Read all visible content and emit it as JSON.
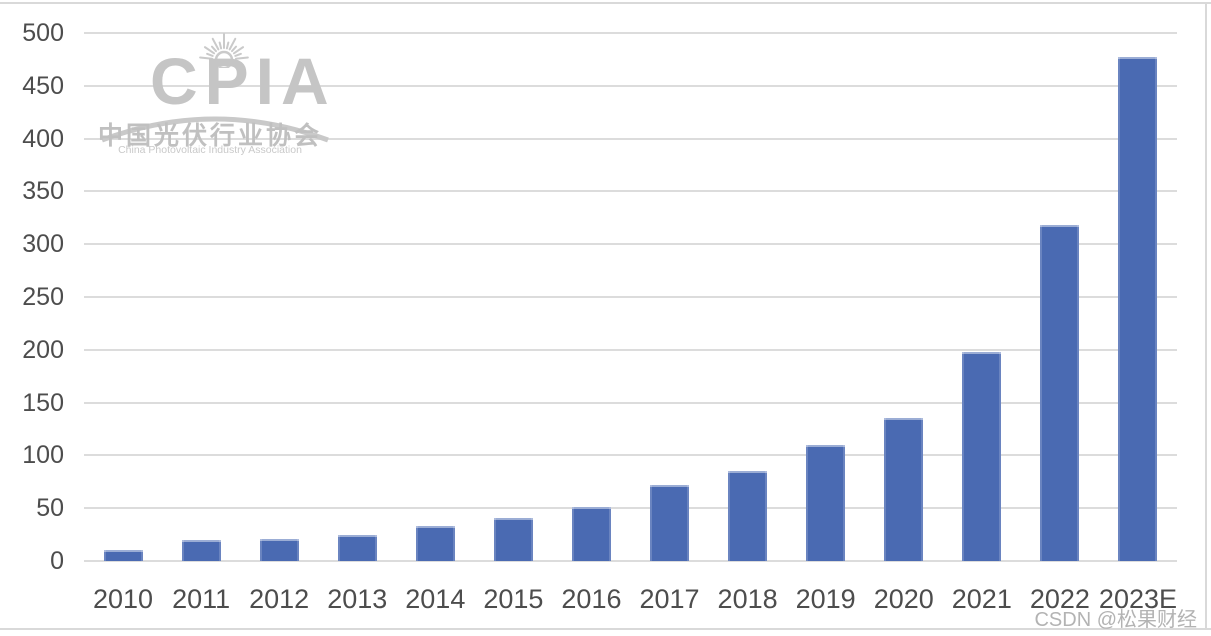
{
  "chart_data": {
    "type": "bar",
    "title": "",
    "categories": [
      "2010",
      "2011",
      "2012",
      "2013",
      "2014",
      "2015",
      "2016",
      "2017",
      "2018",
      "2019",
      "2020",
      "2021",
      "2022",
      "2023E"
    ],
    "values": [
      10,
      20,
      21,
      25,
      33,
      41,
      51,
      72,
      85,
      110,
      135,
      198,
      318,
      477
    ],
    "yticks": [
      0,
      50,
      100,
      150,
      200,
      250,
      300,
      350,
      400,
      450,
      500
    ],
    "ylim": [
      0,
      500
    ],
    "ytick_step": 50,
    "grid": true,
    "legend_position": "none",
    "xlabel": "",
    "ylabel": "",
    "bar_color": "#4a6ab2",
    "gridline_color": "#dcdcdc",
    "axis_label_color": "#4d4d4d"
  },
  "watermark": {
    "abbr": "CPIA",
    "name_cn": "中国光伏行业协会",
    "name_en": "China Photovoltaic Industry Association",
    "color": "#c5c5c5",
    "sun_icon": "sun-rays-icon"
  },
  "credit": {
    "text": "CSDN @松果财经",
    "color": "#b3b3b3"
  },
  "frame": {
    "border_color": "#d9d9d9"
  }
}
